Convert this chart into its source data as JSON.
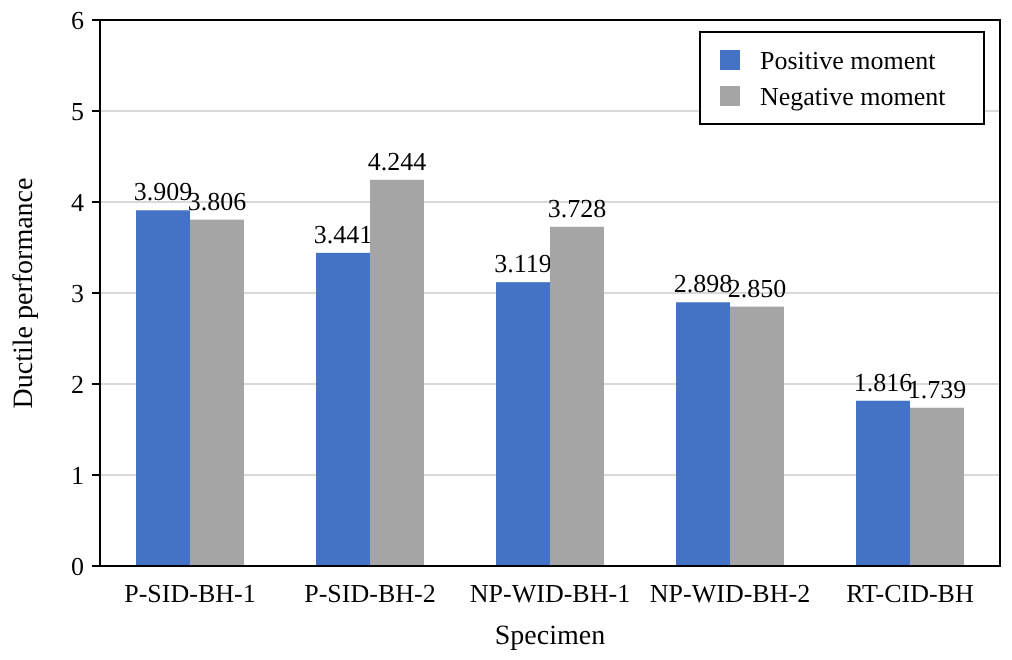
{
  "chart_data": {
    "type": "bar",
    "xlabel": "Specimen",
    "ylabel": "Ductile performance",
    "categories": [
      "P-SID-BH-1",
      "P-SID-BH-2",
      "NP-WID-BH-1",
      "NP-WID-BH-2",
      "RT-CID-BH"
    ],
    "series": [
      {
        "name": "Positive moment",
        "color": "#4472c4",
        "values": [
          3.909,
          3.441,
          3.119,
          2.898,
          1.816
        ]
      },
      {
        "name": "Negative moment",
        "color": "#a5a5a5",
        "values": [
          3.806,
          4.244,
          3.728,
          2.85,
          1.739
        ]
      }
    ],
    "value_labels": [
      [
        "3.909",
        "3.441",
        "3.119",
        "2.898",
        "1.816"
      ],
      [
        "3.806",
        "4.244",
        "3.728",
        "2.850",
        "1.739"
      ]
    ],
    "ylim": [
      0,
      6
    ],
    "yticks": [
      0,
      1,
      2,
      3,
      4,
      5,
      6
    ],
    "grid": "y",
    "legend": "top right"
  }
}
